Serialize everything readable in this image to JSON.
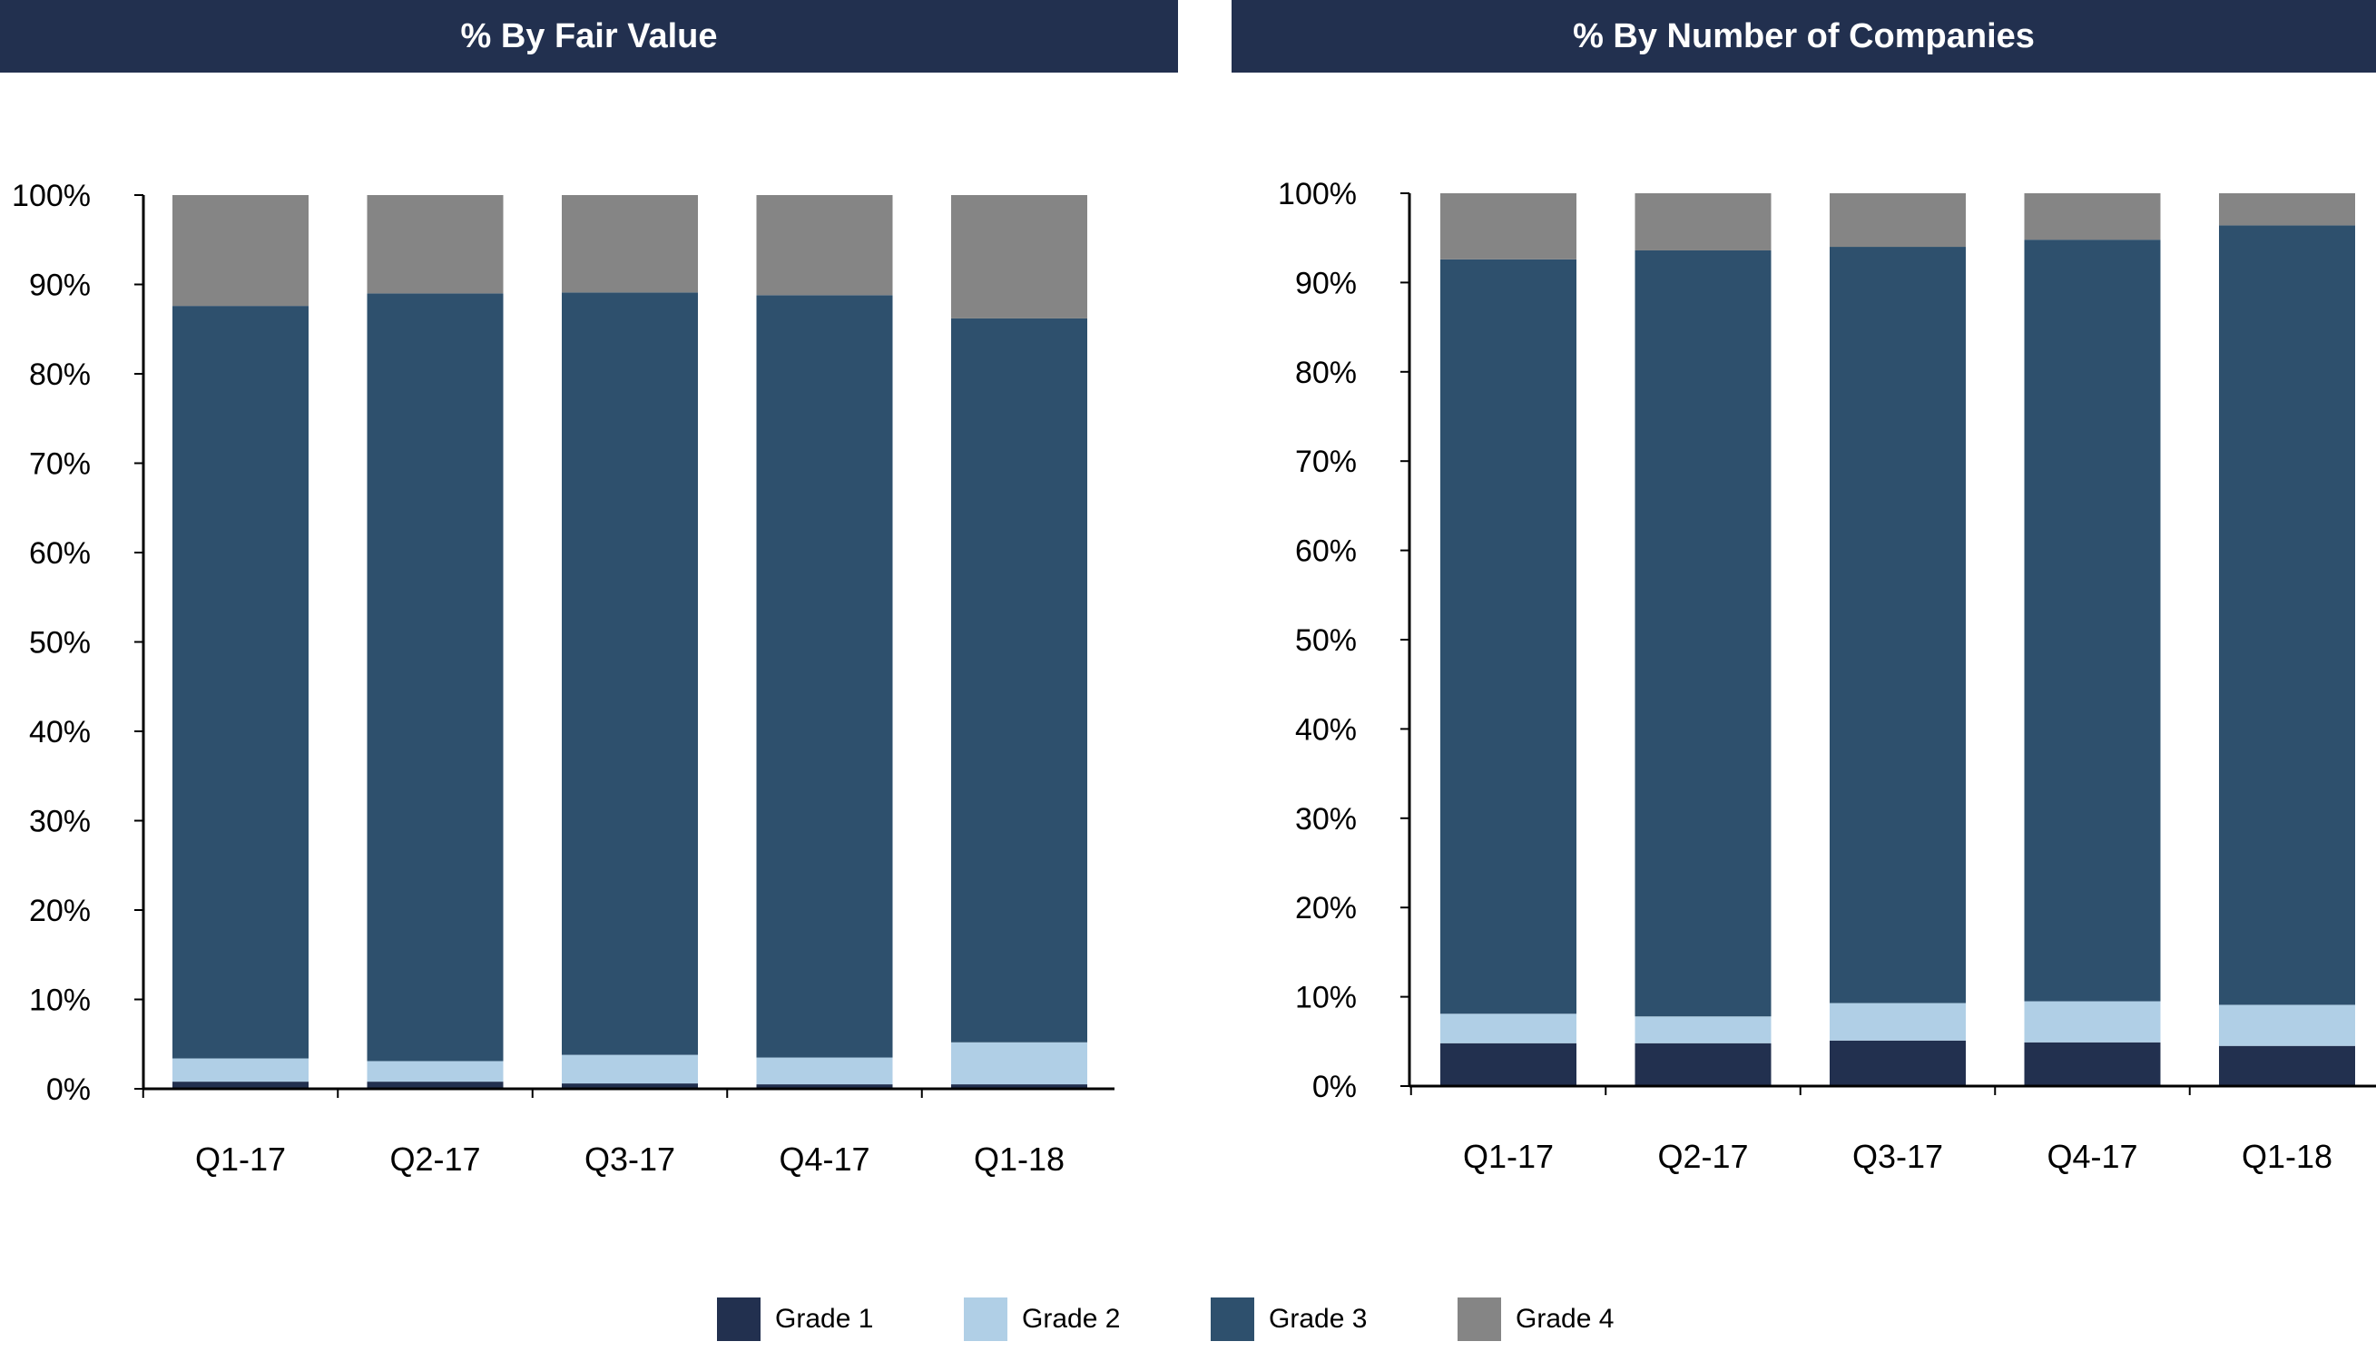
{
  "chart_data": [
    {
      "type": "bar",
      "stacked": true,
      "title": "% By Fair Value",
      "categories": [
        "Q1-17",
        "Q2-17",
        "Q3-17",
        "Q4-17",
        "Q1-18"
      ],
      "series": [
        {
          "name": "Grade 1",
          "values": [
            0.8,
            0.8,
            0.6,
            0.5,
            0.5
          ]
        },
        {
          "name": "Grade 2",
          "values": [
            2.6,
            2.3,
            3.2,
            3.0,
            4.7
          ]
        },
        {
          "name": "Grade 3",
          "values": [
            84.2,
            85.9,
            85.3,
            85.3,
            81.0
          ]
        },
        {
          "name": "Grade 4",
          "values": [
            12.4,
            11.0,
            10.9,
            11.2,
            13.8
          ]
        }
      ],
      "yticks": [
        "0%",
        "10%",
        "20%",
        "30%",
        "40%",
        "50%",
        "60%",
        "70%",
        "80%",
        "90%",
        "100%"
      ],
      "ylim": [
        0,
        100
      ],
      "grid": false
    },
    {
      "type": "bar",
      "stacked": true,
      "title": "% By Number of Companies",
      "categories": [
        "Q1-17",
        "Q2-17",
        "Q3-17",
        "Q4-17",
        "Q1-18"
      ],
      "series": [
        {
          "name": "Grade 1",
          "values": [
            4.8,
            4.8,
            5.1,
            4.9,
            4.5
          ]
        },
        {
          "name": "Grade 2",
          "values": [
            3.3,
            3.0,
            4.2,
            4.6,
            4.6
          ]
        },
        {
          "name": "Grade 3",
          "values": [
            84.5,
            85.8,
            84.7,
            85.3,
            87.3
          ]
        },
        {
          "name": "Grade 4",
          "values": [
            7.4,
            6.4,
            6.0,
            5.2,
            3.6
          ]
        }
      ],
      "yticks": [
        "0%",
        "10%",
        "20%",
        "30%",
        "40%",
        "50%",
        "60%",
        "70%",
        "80%",
        "90%",
        "100%"
      ],
      "ylim": [
        0,
        100
      ],
      "grid": false
    }
  ],
  "legend": {
    "placement": "bottom-center",
    "items": [
      {
        "name": "Grade 1",
        "color": "#22304f"
      },
      {
        "name": "Grade 2",
        "color": "#b0cfe6"
      },
      {
        "name": "Grade 3",
        "color": "#2e506d"
      },
      {
        "name": "Grade 4",
        "color": "#858585"
      }
    ]
  }
}
